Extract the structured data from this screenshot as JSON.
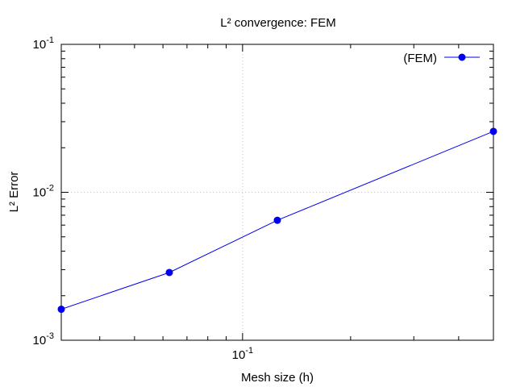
{
  "chart_data": {
    "type": "line",
    "title": "L² convergence: FEM",
    "xlabel": "Mesh size (h)",
    "ylabel": "L² Error",
    "x_scale": "log",
    "y_scale": "log",
    "xlim": [
      0.03125,
      0.5
    ],
    "ylim": [
      0.001,
      0.1
    ],
    "grid": true,
    "legend_position": "top-right",
    "x_ticks": [
      {
        "value": 0.1,
        "label": "10",
        "exp": "-1"
      }
    ],
    "y_ticks": [
      {
        "value": 0.001,
        "label": "10",
        "exp": "-3"
      },
      {
        "value": 0.01,
        "label": "10",
        "exp": "-2"
      },
      {
        "value": 0.1,
        "label": "10",
        "exp": "-1"
      }
    ],
    "series": [
      {
        "name": "(FEM)",
        "color": "#0000ee",
        "marker": "circle",
        "x": [
          0.03125,
          0.0625,
          0.125,
          0.5
        ],
        "y": [
          0.00162,
          0.00287,
          0.00647,
          0.0258
        ]
      }
    ]
  }
}
